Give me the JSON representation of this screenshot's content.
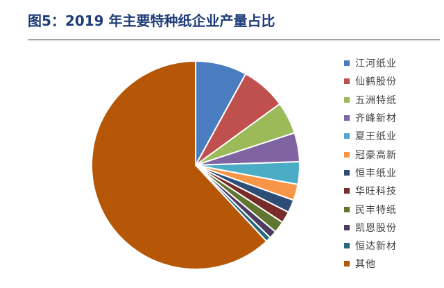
{
  "title": "图5：2019 年主要特种纸企业产量占比",
  "chart_data": {
    "type": "pie",
    "title": "图5：2019 年主要特种纸企业产量占比",
    "legend_position": "right",
    "slices": [
      {
        "label": "江河纸业",
        "value": 8.0,
        "color": "#4a7dbf"
      },
      {
        "label": "仙鹤股份",
        "value": 7.0,
        "color": "#c0504d"
      },
      {
        "label": "五洲特纸",
        "value": 5.0,
        "color": "#9bbb59"
      },
      {
        "label": "齐峰新材",
        "value": 4.5,
        "color": "#8064a2"
      },
      {
        "label": "夏王纸业",
        "value": 3.5,
        "color": "#4bacc6"
      },
      {
        "label": "冠豪高新",
        "value": 2.5,
        "color": "#f79646"
      },
      {
        "label": "恒丰纸业",
        "value": 2.0,
        "color": "#2c4d75"
      },
      {
        "label": "华旺科技",
        "value": 1.8,
        "color": "#772c2a"
      },
      {
        "label": "民丰特纸",
        "value": 1.8,
        "color": "#5f7530"
      },
      {
        "label": "凯恩股份",
        "value": 1.2,
        "color": "#4d3b62"
      },
      {
        "label": "恒达新材",
        "value": 0.8,
        "color": "#276a7c"
      },
      {
        "label": "其他",
        "value": 62.0,
        "color": "#b65708"
      }
    ]
  }
}
